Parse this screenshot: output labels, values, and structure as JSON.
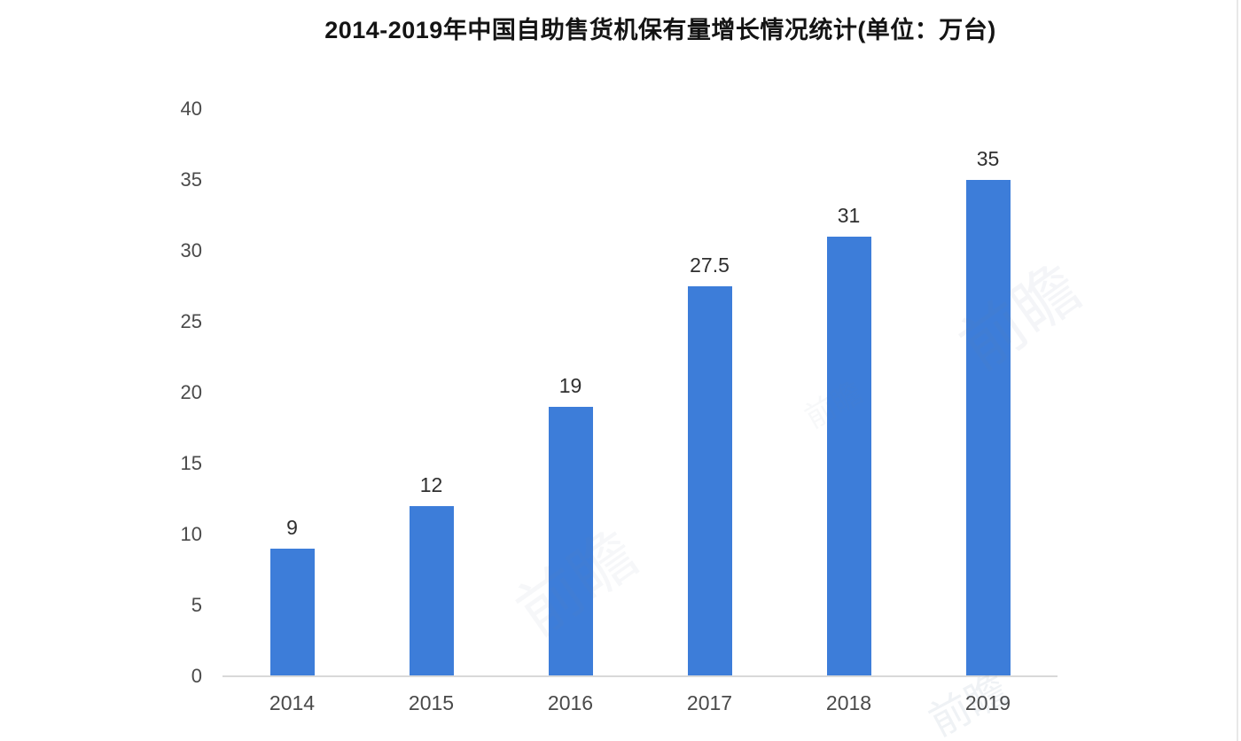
{
  "chart_data": {
    "type": "bar",
    "title": "2014-2019年中国自助售货机保有量增长情况统计(单位：万台)",
    "categories": [
      "2014",
      "2015",
      "2016",
      "2017",
      "2018",
      "2019"
    ],
    "values": [
      9,
      12,
      19,
      27.5,
      31,
      35
    ],
    "value_labels": [
      "9",
      "12",
      "19",
      "27.5",
      "31",
      "35"
    ],
    "xlabel": "",
    "ylabel": "",
    "ylim": [
      0,
      40
    ],
    "yticks": [
      0,
      5,
      10,
      15,
      20,
      25,
      30,
      35,
      40
    ],
    "grid": false,
    "legend_position": "none",
    "bar_color": "#3d7dd9",
    "value_label_color": "#2f2f2f",
    "tick_label_color": "#4a4a4a",
    "axis_line_color": "#d9d9d9",
    "background_color": "#ffffff"
  },
  "watermark": {
    "text": "前瞻"
  }
}
